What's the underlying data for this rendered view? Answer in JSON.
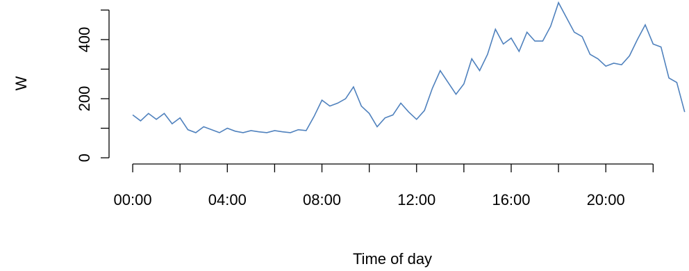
{
  "chart_data": {
    "type": "line",
    "xlabel": "Time of day",
    "ylabel": "W",
    "x": [
      0,
      20,
      40,
      60,
      80,
      100,
      120,
      140,
      160,
      180,
      200,
      220,
      240,
      260,
      280,
      300,
      320,
      340,
      360,
      380,
      400,
      420,
      440,
      460,
      480,
      500,
      520,
      540,
      560,
      580,
      600,
      620,
      640,
      660,
      680,
      700,
      720,
      740,
      760,
      780,
      800,
      820,
      840,
      860,
      880,
      900,
      920,
      940,
      960,
      980,
      1000,
      1020,
      1040,
      1060,
      1080,
      1100,
      1120,
      1140,
      1160,
      1180,
      1200,
      1220,
      1240,
      1260,
      1280,
      1300,
      1320,
      1340,
      1360,
      1380,
      1400
    ],
    "series": [
      {
        "color": "#4f81bd",
        "values": [
          145,
          125,
          150,
          130,
          150,
          115,
          135,
          95,
          85,
          105,
          95,
          85,
          100,
          90,
          85,
          92,
          88,
          85,
          92,
          88,
          85,
          95,
          92,
          140,
          195,
          175,
          185,
          200,
          240,
          175,
          150,
          105,
          135,
          145,
          185,
          155,
          130,
          160,
          235,
          295,
          255,
          215,
          250,
          335,
          295,
          350,
          435,
          385,
          405,
          360,
          425,
          395,
          395,
          445,
          525,
          475,
          425,
          410,
          350,
          335,
          310,
          320,
          315,
          345,
          400,
          450,
          385,
          375,
          270,
          255,
          155
        ]
      }
    ],
    "xlim": [
      -60,
      1411
    ],
    "ylim": [
      -21,
      534
    ],
    "xticks": [
      {
        "value": 0,
        "label": "00:00"
      },
      {
        "value": 120,
        "label": null
      },
      {
        "value": 240,
        "label": "04:00"
      },
      {
        "value": 360,
        "label": null
      },
      {
        "value": 480,
        "label": "08:00"
      },
      {
        "value": 600,
        "label": null
      },
      {
        "value": 720,
        "label": "12:00"
      },
      {
        "value": 840,
        "label": null
      },
      {
        "value": 960,
        "label": "16:00"
      },
      {
        "value": 1080,
        "label": null
      },
      {
        "value": 1200,
        "label": "20:00"
      },
      {
        "value": 1320,
        "label": null
      }
    ],
    "yticks": [
      {
        "value": 0,
        "label": "0"
      },
      {
        "value": 100,
        "label": null
      },
      {
        "value": 200,
        "label": "200"
      },
      {
        "value": 300,
        "label": null
      },
      {
        "value": 400,
        "label": "400"
      },
      {
        "value": 500,
        "label": null
      }
    ]
  }
}
